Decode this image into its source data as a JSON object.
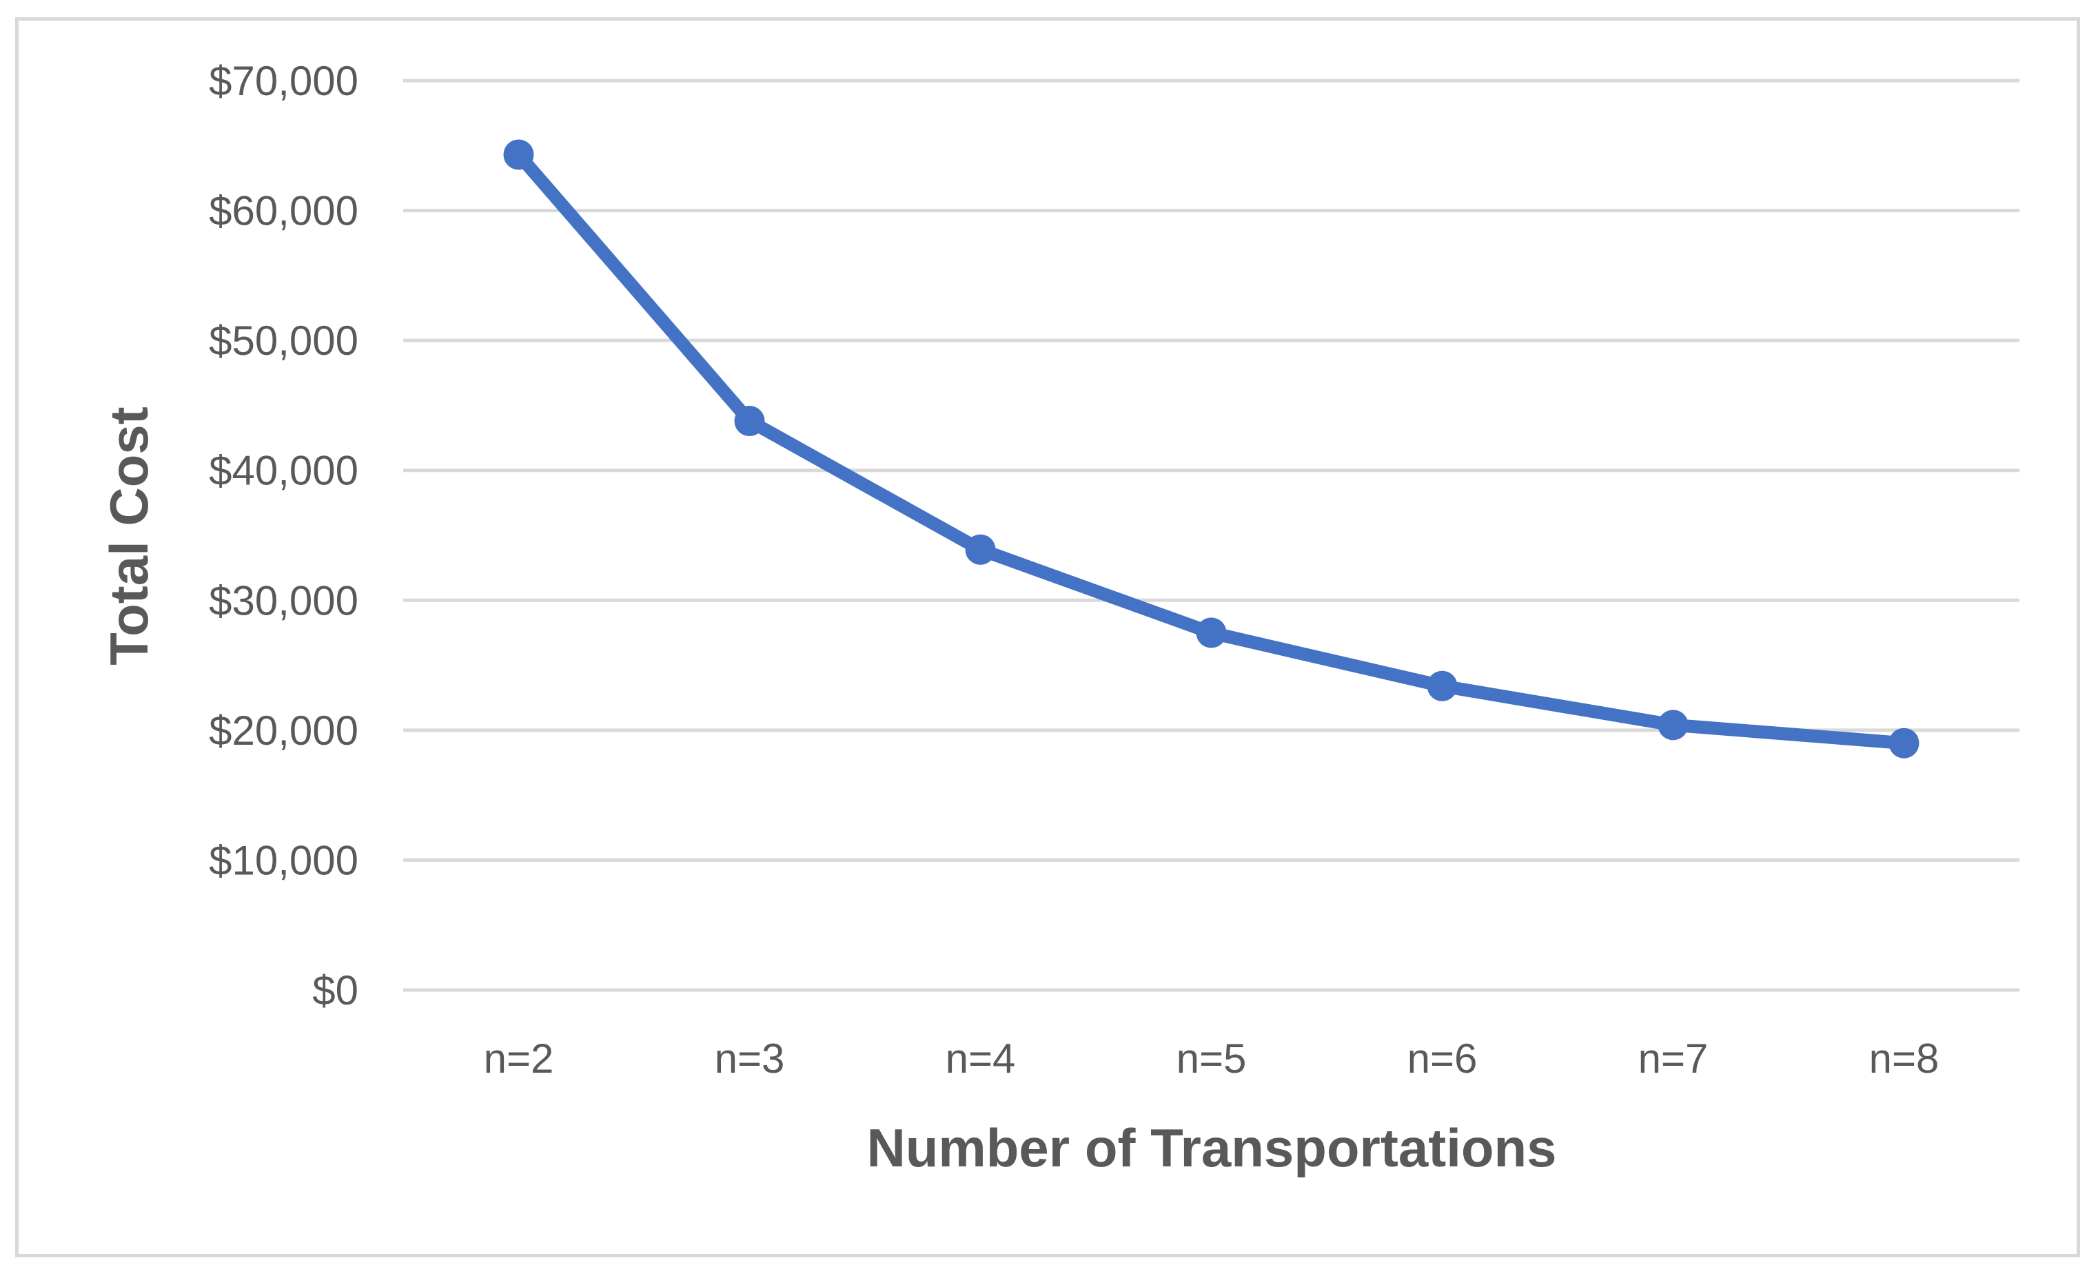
{
  "chart_data": {
    "type": "line",
    "title": "",
    "xlabel": "Number of Transportations",
    "ylabel": "Total Cost",
    "categories": [
      "n=2",
      "n=3",
      "n=4",
      "n=5",
      "n=6",
      "n=7",
      "n=8"
    ],
    "series": [
      {
        "values": [
          64300,
          43800,
          33900,
          27500,
          23400,
          20400,
          19000
        ],
        "color": "#4472c4"
      }
    ],
    "ylim": [
      0,
      70000
    ],
    "yticks": [
      0,
      10000,
      20000,
      30000,
      40000,
      50000,
      60000,
      70000
    ],
    "ytick_labels": [
      "$0",
      "$10,000",
      "$20,000",
      "$30,000",
      "$40,000",
      "$50,000",
      "$60,000",
      "$70,000"
    ],
    "grid": true,
    "legend": "none"
  }
}
